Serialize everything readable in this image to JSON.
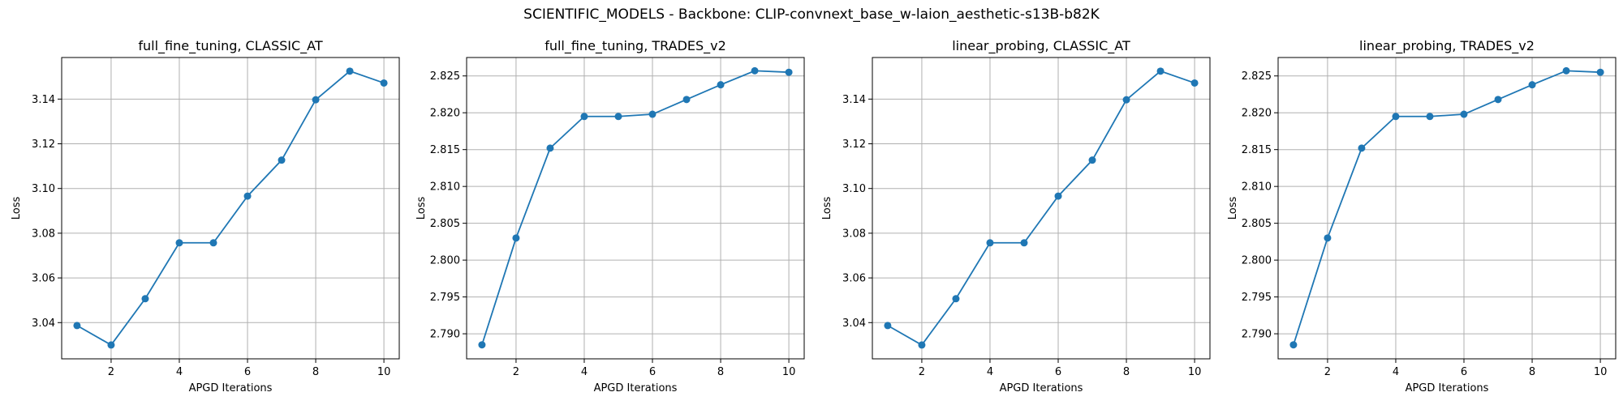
{
  "suptitle": "SCIENTIFIC_MODELS - Backbone: CLIP-convnext_base_w-laion_aesthetic-s13B-b82K",
  "colors": {
    "line": "#1f77b4",
    "grid": "#b0b0b0",
    "axes": "#000000"
  },
  "chart_data": [
    {
      "type": "line",
      "title": "full_fine_tuning, CLASSIC_AT",
      "xlabel": "APGD Iterations",
      "ylabel": "Loss",
      "grid": true,
      "x": [
        1,
        2,
        3,
        4,
        5,
        6,
        7,
        8,
        9,
        10
      ],
      "series": [
        {
          "values": [
            3.0387,
            3.03,
            3.0507,
            3.0757,
            3.0757,
            3.0966,
            3.1127,
            3.1397,
            3.1525,
            3.1472
          ]
        }
      ],
      "xlim": [
        0.55,
        10.45
      ],
      "ylim": [
        3.0238,
        3.1586
      ],
      "xticks": [
        2,
        4,
        6,
        8,
        10
      ],
      "xtick_labels": [
        "2",
        "4",
        "6",
        "8",
        "10"
      ],
      "yticks": [
        3.04,
        3.06,
        3.08,
        3.1,
        3.12,
        3.14
      ],
      "ytick_labels": [
        "3.04",
        "3.06",
        "3.08",
        "3.10",
        "3.12",
        "3.14"
      ]
    },
    {
      "type": "line",
      "title": "full_fine_tuning, TRADES_v2",
      "xlabel": "APGD Iterations",
      "ylabel": "Loss",
      "grid": true,
      "x": [
        1,
        2,
        3,
        4,
        5,
        6,
        7,
        8,
        9,
        10
      ],
      "series": [
        {
          "values": [
            2.7885,
            2.803,
            2.8152,
            2.8195,
            2.8195,
            2.8198,
            2.8218,
            2.8238,
            2.8257,
            2.8255
          ]
        }
      ],
      "xlim": [
        0.55,
        10.45
      ],
      "ylim": [
        2.7866,
        2.8275
      ],
      "xticks": [
        2,
        4,
        6,
        8,
        10
      ],
      "xtick_labels": [
        "2",
        "4",
        "6",
        "8",
        "10"
      ],
      "yticks": [
        2.79,
        2.795,
        2.8,
        2.805,
        2.81,
        2.815,
        2.82,
        2.825
      ],
      "ytick_labels": [
        "2.790",
        "2.795",
        "2.800",
        "2.805",
        "2.810",
        "2.815",
        "2.820",
        "2.825"
      ]
    },
    {
      "type": "line",
      "title": "linear_probing, CLASSIC_AT",
      "xlabel": "APGD Iterations",
      "ylabel": "Loss",
      "grid": true,
      "x": [
        1,
        2,
        3,
        4,
        5,
        6,
        7,
        8,
        9,
        10
      ],
      "series": [
        {
          "values": [
            3.0387,
            3.03,
            3.0507,
            3.0757,
            3.0757,
            3.0966,
            3.1127,
            3.1397,
            3.1525,
            3.1472
          ]
        }
      ],
      "xlim": [
        0.55,
        10.45
      ],
      "ylim": [
        3.0238,
        3.1586
      ],
      "xticks": [
        2,
        4,
        6,
        8,
        10
      ],
      "xtick_labels": [
        "2",
        "4",
        "6",
        "8",
        "10"
      ],
      "yticks": [
        3.04,
        3.06,
        3.08,
        3.1,
        3.12,
        3.14
      ],
      "ytick_labels": [
        "3.04",
        "3.06",
        "3.08",
        "3.10",
        "3.12",
        "3.14"
      ]
    },
    {
      "type": "line",
      "title": "linear_probing, TRADES_v2",
      "xlabel": "APGD Iterations",
      "ylabel": "Loss",
      "grid": true,
      "x": [
        1,
        2,
        3,
        4,
        5,
        6,
        7,
        8,
        9,
        10
      ],
      "series": [
        {
          "values": [
            2.7885,
            2.803,
            2.8152,
            2.8195,
            2.8195,
            2.8198,
            2.8218,
            2.8238,
            2.8257,
            2.8255
          ]
        }
      ],
      "xlim": [
        0.55,
        10.45
      ],
      "ylim": [
        2.7866,
        2.8275
      ],
      "xticks": [
        2,
        4,
        6,
        8,
        10
      ],
      "xtick_labels": [
        "2",
        "4",
        "6",
        "8",
        "10"
      ],
      "yticks": [
        2.79,
        2.795,
        2.8,
        2.805,
        2.81,
        2.815,
        2.82,
        2.825
      ],
      "ytick_labels": [
        "2.790",
        "2.795",
        "2.800",
        "2.805",
        "2.810",
        "2.815",
        "2.820",
        "2.825"
      ]
    }
  ]
}
